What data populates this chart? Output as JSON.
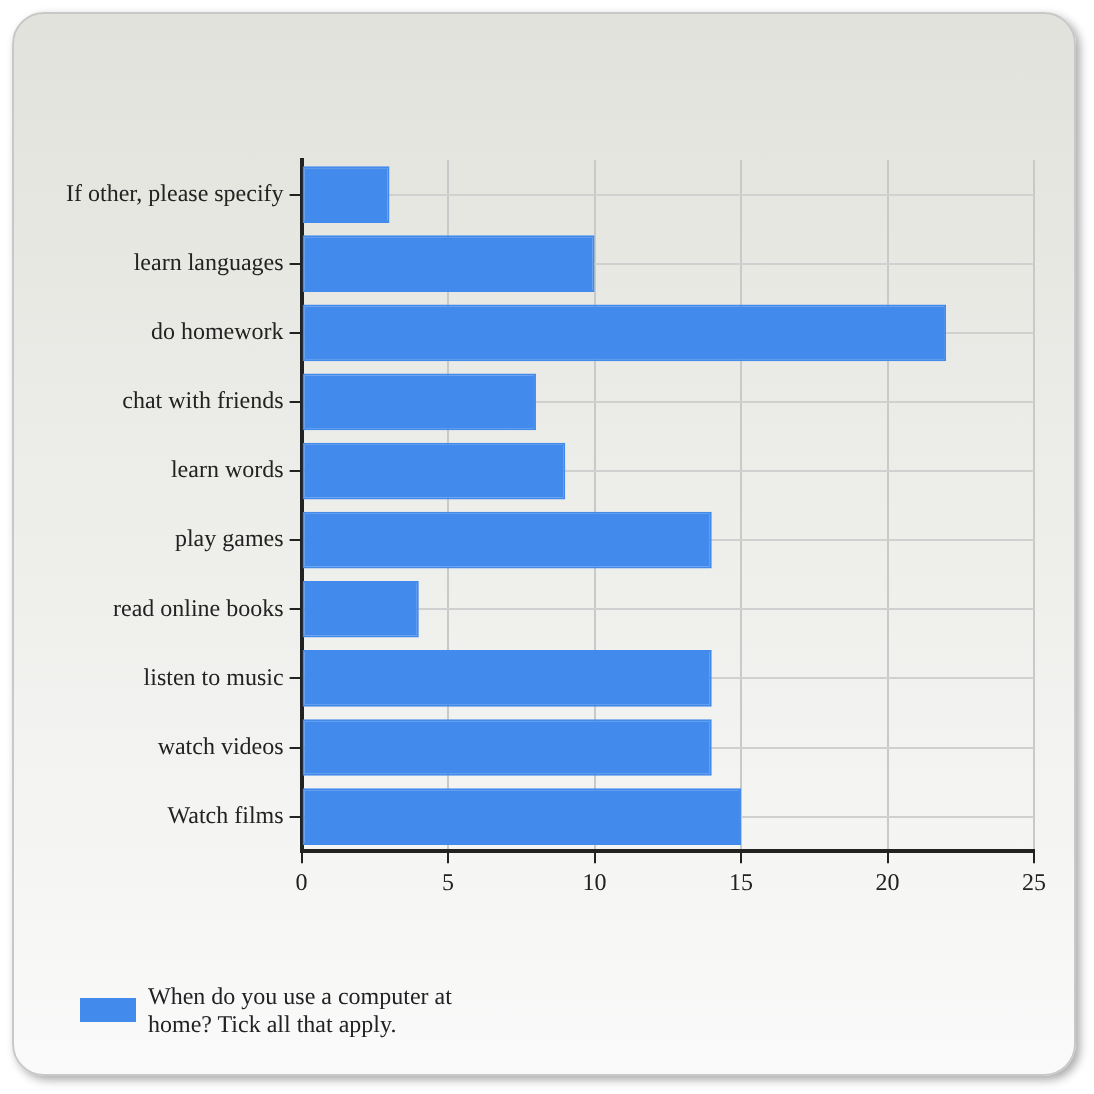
{
  "chart_data": {
    "type": "bar",
    "orientation": "horizontal",
    "categories": [
      "If other, please specify",
      "learn languages",
      "do homework",
      "chat with friends",
      "learn words",
      "play games",
      "read online books",
      "listen to music",
      "watch videos",
      "Watch films"
    ],
    "series": [
      {
        "name": "When do you use a computer at home? Tick all that apply.",
        "color": "#428bed",
        "values": [
          3,
          10,
          22,
          8,
          9,
          14,
          4,
          14,
          14,
          15
        ]
      }
    ],
    "xlim": [
      0,
      25
    ],
    "xticks": [
      0,
      5,
      10,
      15,
      20,
      25
    ],
    "grid": true,
    "legend": "bottom left"
  }
}
